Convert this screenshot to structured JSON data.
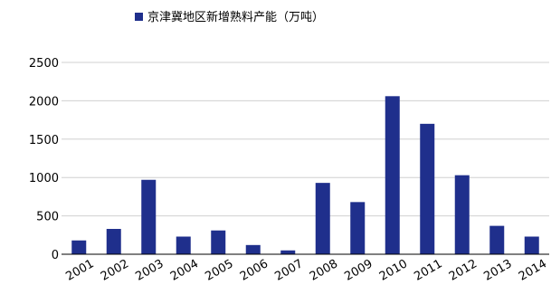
{
  "chart_data": {
    "type": "bar",
    "categories": [
      "2001",
      "2002",
      "2003",
      "2004",
      "2005",
      "2006",
      "2007",
      "2008",
      "2009",
      "2010",
      "2011",
      "2012",
      "2013",
      "2014"
    ],
    "series": [
      {
        "name": "京津冀地区新增熟料产能（万吨）",
        "values": [
          180,
          330,
          970,
          230,
          310,
          120,
          50,
          930,
          680,
          2060,
          1700,
          1030,
          370,
          230
        ],
        "color": "#1f2f8c"
      }
    ],
    "ylim": [
      0,
      2500
    ],
    "yticks": [
      "0",
      "500",
      "1000",
      "1500",
      "2000",
      "2500"
    ],
    "grid": true,
    "legend_position": "top-center",
    "xlabel": "",
    "ylabel": ""
  }
}
